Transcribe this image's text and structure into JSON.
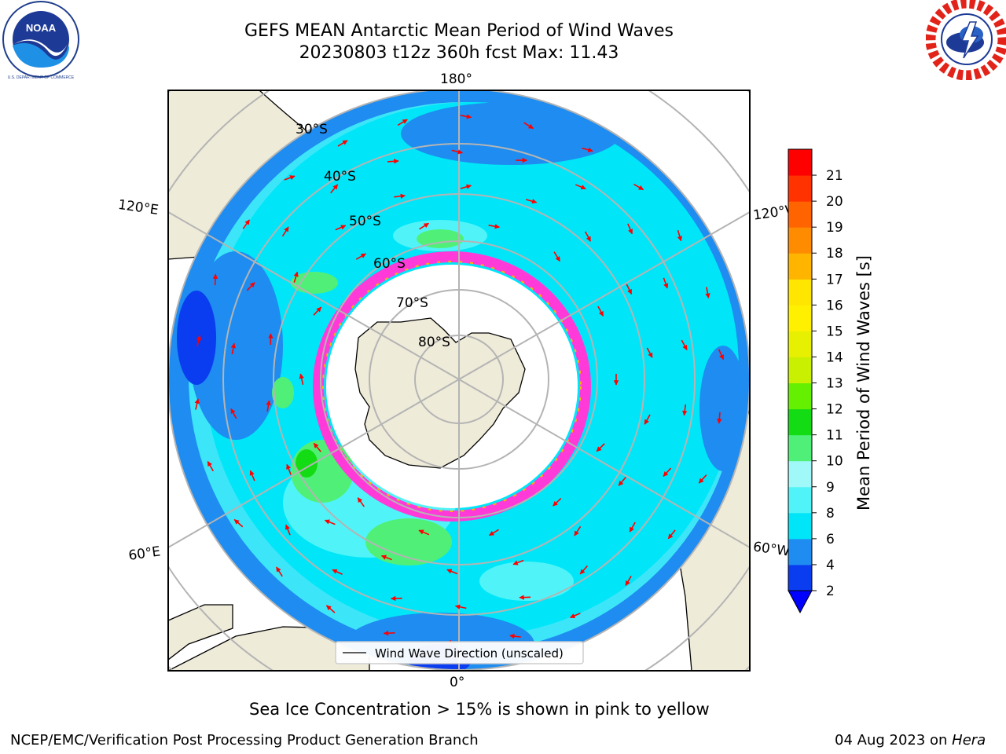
{
  "title": {
    "line1": "GEFS MEAN Antarctic Mean Period of Wind Waves",
    "line2": "20230803 t12z 360h fcst   Max: 11.43"
  },
  "map": {
    "meridian_labels": {
      "top": "180°",
      "bottom": "0°",
      "upper_left": "120°E",
      "upper_right": "120°W",
      "lower_left": "60°E",
      "lower_right": "60°W"
    },
    "latitude_labels": [
      "30°S",
      "40°S",
      "50°S",
      "60°S",
      "70°S",
      "80°S"
    ],
    "legend_label": "Wind Wave Direction (unscaled)"
  },
  "colorbar": {
    "label": "Mean Period of Wind Waves [s]",
    "ticks": [
      "2",
      "4",
      "6",
      "8",
      "9",
      "10",
      "11",
      "12",
      "13",
      "14",
      "15",
      "16",
      "17",
      "18",
      "19",
      "20",
      "21"
    ],
    "colors": [
      "#0a3cf0",
      "#1e8cf0",
      "#00e6f8",
      "#50f4f8",
      "#a0f8f8",
      "#50f078",
      "#14dc14",
      "#64f000",
      "#c8f000",
      "#e6f000",
      "#fff000",
      "#ffe600",
      "#ffb400",
      "#ff8c00",
      "#ff6400",
      "#ff3200",
      "#ff0000"
    ],
    "under_color": "#0000ff"
  },
  "colors": {
    "land": "#efebd9",
    "sea_ice_edge": "#ff3ad8",
    "ocean_main": "#39eaf7",
    "arrow": "#ff0000"
  },
  "logos": {
    "left": "NOAA",
    "right": "NATIONAL WEATHER SERVICE"
  },
  "note": "Sea Ice Concentration > 15% is shown in pink to yellow",
  "footer_left": "NCEP/EMC/Verification Post Processing Product Generation Branch",
  "footer_right_date": "04 Aug 2023 on ",
  "footer_right_machine": "Hera"
}
